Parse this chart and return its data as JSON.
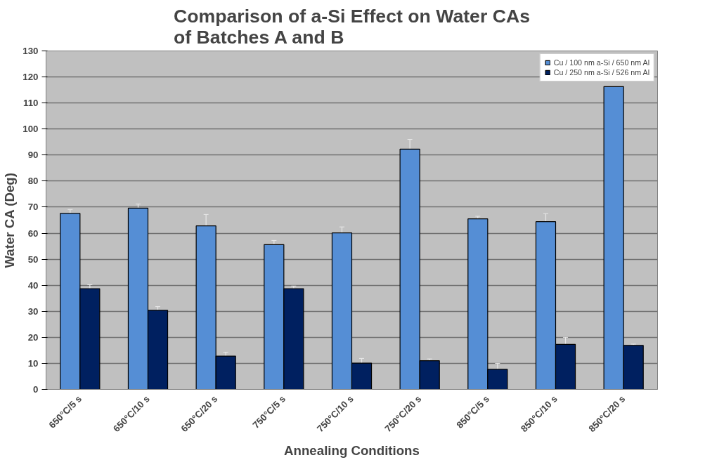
{
  "chart_data": {
    "type": "bar",
    "title": "Comparison of a-Si Effect on Water CAs\nof Batches A and B",
    "xlabel": "Annealing Conditions",
    "ylabel": "Water CA (Deg)",
    "categories": [
      "650°C/5 s",
      "650°C/10 s",
      "650°C/20 s",
      "750°C/5 s",
      "750°C/10 s",
      "750°C/20 s",
      "850°C/5 s",
      "850°C/10 s",
      "850°C/20 s"
    ],
    "series": [
      {
        "name": "Cu / 100 nm a-Si / 650 nm Al",
        "color": "#558ed5",
        "values": [
          67.6,
          69.6,
          62.8,
          55.6,
          60.1,
          92.3,
          65.5,
          64.4,
          116.3
        ],
        "errors": [
          1.5,
          1.6,
          4.4,
          1.6,
          2.3,
          3.7,
          1.0,
          3.1,
          null
        ]
      },
      {
        "name": "Cu / 250 nm a-Si / 526 nm Al",
        "color": "#002060",
        "values": [
          38.7,
          30.4,
          12.8,
          38.7,
          10.1,
          11.0,
          7.7,
          17.3,
          16.9
        ],
        "errors": [
          1.5,
          1.4,
          1.5,
          1.0,
          1.8,
          0.7,
          2.3,
          2.7,
          0.5
        ]
      }
    ],
    "ylim": [
      0,
      130
    ],
    "yticks": [
      0,
      10,
      20,
      30,
      40,
      50,
      60,
      70,
      80,
      90,
      100,
      110,
      120,
      130
    ],
    "grid": "y",
    "legend": "top right"
  }
}
